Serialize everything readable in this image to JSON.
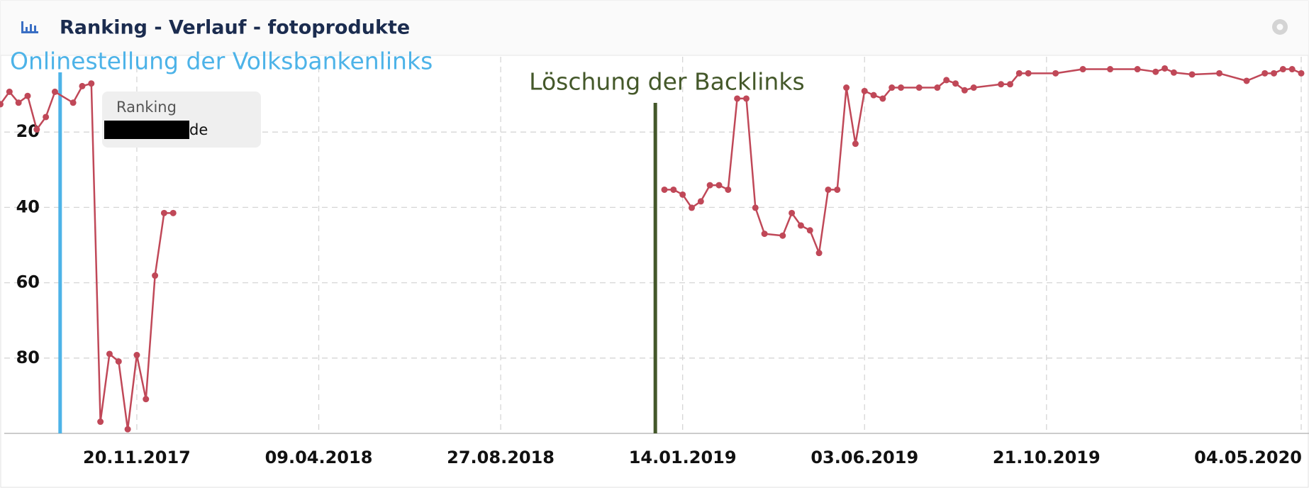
{
  "chart_data": {
    "type": "line",
    "title": "Ranking - Verlauf - fotoprodukte",
    "legend_title": "Ranking",
    "x": [
      "07.08.2017",
      "14.08.2017",
      "21.08.2017",
      "28.08.2017",
      "04.09.2017",
      "11.09.2017",
      "18.09.2017",
      "02.10.2017",
      "09.10.2017",
      "16.10.2017",
      "23.10.2017",
      "30.10.2017",
      "06.11.2017",
      "13.11.2017",
      "20.11.2017",
      "27.11.2017",
      "04.12.2017",
      "11.12.2017",
      "18.12.2017",
      "18.06.2018",
      "31.12.2018",
      "07.01.2019",
      "14.01.2019",
      "21.01.2019",
      "28.01.2019",
      "04.02.2019",
      "11.02.2019",
      "18.02.2019",
      "25.02.2019",
      "04.03.2019",
      "11.03.2019",
      "18.03.2019",
      "01.04.2019",
      "08.04.2019",
      "15.04.2019",
      "22.04.2019",
      "29.04.2019",
      "06.05.2019",
      "13.05.2019",
      "20.05.2019",
      "27.05.2019",
      "03.06.2019",
      "10.06.2019",
      "17.06.2019",
      "24.06.2019",
      "01.07.2019",
      "15.07.2019",
      "29.07.2019",
      "05.08.2019",
      "12.08.2019",
      "19.08.2019",
      "26.08.2019",
      "16.09.2019",
      "23.09.2019",
      "30.09.2019",
      "07.10.2019",
      "28.10.2019",
      "18.11.2019",
      "09.12.2019",
      "30.12.2019",
      "13.01.2020",
      "20.01.2020",
      "27.01.2020",
      "10.02.2020",
      "02.03.2020",
      "23.03.2020",
      "06.04.2020",
      "13.04.2020",
      "20.04.2020",
      "27.04.2020",
      "04.05.2020"
    ],
    "series": [
      {
        "name": "de",
        "color": "#c04858",
        "values": [
          12.6,
          9.3,
          12.2,
          10.4,
          19.3,
          16,
          9.3,
          12.2,
          7.8,
          7.1,
          96.9,
          78.9,
          80.9,
          98.9,
          79.2,
          90.9,
          58.1,
          41.5,
          41.5,
          null,
          35.3,
          35.3,
          36.6,
          40.1,
          38.4,
          34.1,
          34.1,
          35.3,
          11.1,
          11.1,
          40.1,
          47,
          47.5,
          41.5,
          44.8,
          46.1,
          52.1,
          35.3,
          35.3,
          8.2,
          23.1,
          9.1,
          10.2,
          11.1,
          8.2,
          8.2,
          8.2,
          8.2,
          6.2,
          7.1,
          8.9,
          8.2,
          7.3,
          7.3,
          4.4,
          4.4,
          4.4,
          3.3,
          3.3,
          3.3,
          4,
          3.1,
          4.2,
          4.7,
          4.4,
          6.4,
          4.4,
          4.4,
          3.3,
          3.3,
          4.4
        ]
      }
    ],
    "xlim": [
      "10.08.2017",
      "10.05.2020"
    ],
    "xticks": [
      "20.11.2017",
      "09.04.2018",
      "27.08.2018",
      "14.01.2019",
      "03.06.2019",
      "21.10.2019",
      "04.05.2020"
    ],
    "ylim": [
      100,
      0
    ],
    "yticks": [
      20,
      40,
      60,
      80
    ],
    "grid": true,
    "annotations": [
      {
        "x": "22.09.2017",
        "label": "Onlinestellung der Volksbankenlinks",
        "color": "#4db3e8"
      },
      {
        "x": "24.12.2018",
        "label": "Löschung der Backlinks",
        "color": "#44582a"
      }
    ]
  }
}
